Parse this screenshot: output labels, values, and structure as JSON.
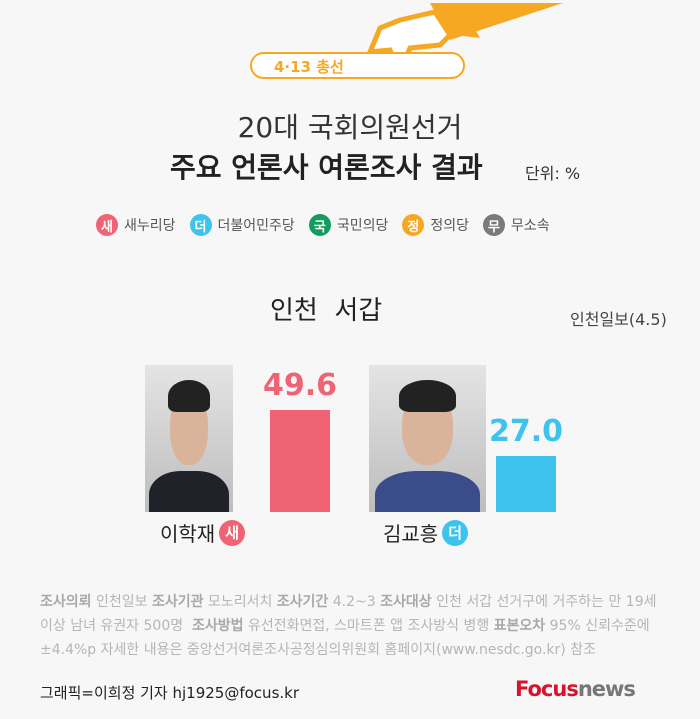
{
  "header": {
    "tag": "4·13 총선",
    "title_line1": "20대 국회의원선거",
    "title_line2": "주요 언론사 여론조사 결과",
    "unit": "단위: %"
  },
  "legend": [
    {
      "badge": "새",
      "label": "새누리당",
      "color": "#ef6374"
    },
    {
      "badge": "더",
      "label": "더불어민주당",
      "color": "#3ec3ee"
    },
    {
      "badge": "국",
      "label": "국민의당",
      "color": "#149b5f"
    },
    {
      "badge": "정",
      "label": "정의당",
      "color": "#f7a823"
    },
    {
      "badge": "무",
      "label": "무소속",
      "color": "#7a7a7a"
    }
  ],
  "region": "인천  서갑",
  "source": "인천일보(4.5)",
  "chart_data": {
    "type": "bar",
    "categories": [
      "이학재",
      "김교흥"
    ],
    "values": [
      49.6,
      27.0
    ],
    "value_labels": [
      "49.6",
      "27.0"
    ],
    "parties": [
      "새",
      "더"
    ],
    "colors": [
      "#ef6374",
      "#3ec3ee"
    ],
    "ylim": [
      0,
      49.6
    ]
  },
  "note": {
    "l1": [
      [
        "조사의뢰",
        true
      ],
      [
        " 인천일보 ",
        false
      ],
      [
        "조사기관",
        true
      ],
      [
        " 모노리서치 ",
        false
      ],
      [
        "조사기간",
        true
      ],
      [
        " 4.2~3 ",
        false
      ],
      [
        "조사대상",
        true
      ],
      [
        " 인천 서갑 선거구에 거주하는 만 19세",
        false
      ]
    ],
    "l2": [
      [
        "이상 남녀 유권자 500명  ",
        false
      ],
      [
        "조사방법",
        true
      ],
      [
        " 유선전화면접, 스마트폰 앱 조사방식 병행 ",
        false
      ],
      [
        "표본오차",
        true
      ],
      [
        " 95% 신뢰수준에",
        false
      ]
    ],
    "l3": [
      [
        "±4.4%p 자세한 내용은 중앙선거여론조사공정심의위원회 홈페이지(www.nesdc.go.kr) 참조",
        false
      ]
    ]
  },
  "credit": "그래픽=이희정 기자 hj1925@focus.kr",
  "logo": {
    "part1": "Focus",
    "part2": "news"
  }
}
